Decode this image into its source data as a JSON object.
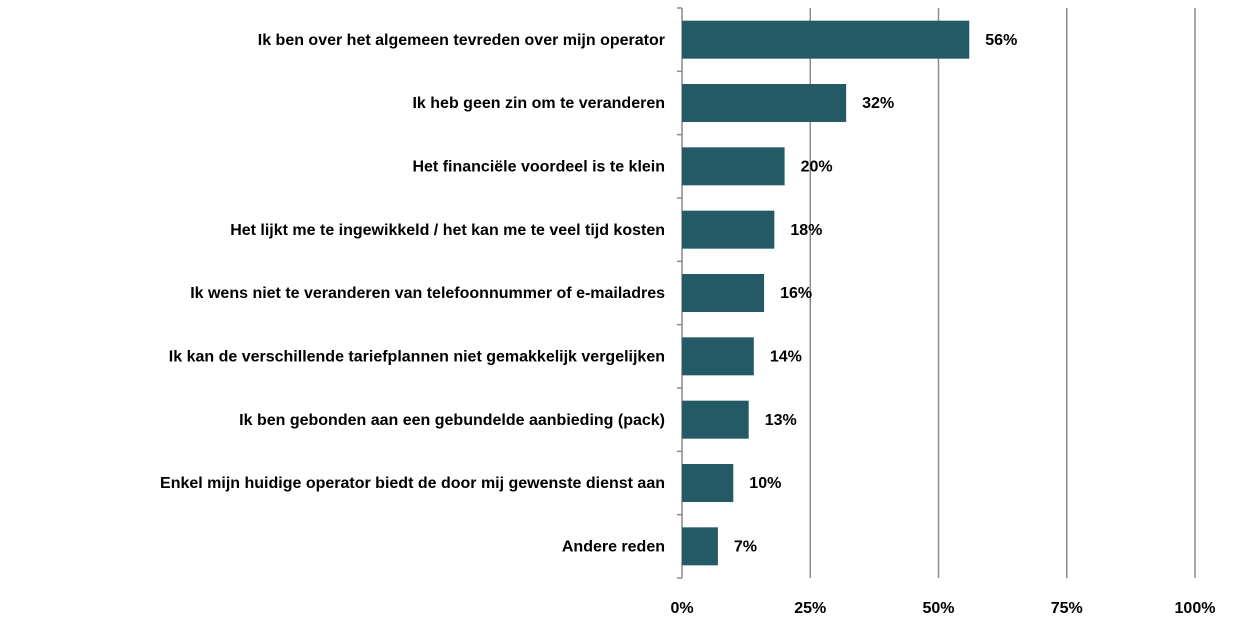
{
  "chart_data": {
    "type": "bar",
    "orientation": "horizontal",
    "categories": [
      "Ik ben over het algemeen tevreden over mijn operator",
      "Ik heb geen zin om te veranderen",
      "Het financiële voordeel is te klein",
      "Het lijkt me te ingewikkeld / het kan me te veel tijd kosten",
      "Ik wens niet te veranderen van telefoonnummer of e-mailadres",
      "Ik kan de verschillende tariefplannen niet gemakkelijk vergelijken",
      "Ik ben gebonden aan een gebundelde aanbieding (pack)",
      "Enkel mijn huidige operator biedt de door mij gewenste dienst aan",
      "Andere reden"
    ],
    "values": [
      56,
      32,
      20,
      18,
      16,
      14,
      13,
      10,
      7
    ],
    "value_labels": [
      "56%",
      "32%",
      "20%",
      "18%",
      "16%",
      "14%",
      "13%",
      "10%",
      "7%"
    ],
    "color": "#245a66",
    "xlim": [
      0,
      100
    ],
    "xticks": [
      {
        "value": 0,
        "label": "0%"
      },
      {
        "value": 25,
        "label": "25%"
      },
      {
        "value": 50,
        "label": "50%"
      },
      {
        "value": 75,
        "label": "75%"
      },
      {
        "value": 100,
        "label": "100%"
      }
    ],
    "grid": true
  }
}
